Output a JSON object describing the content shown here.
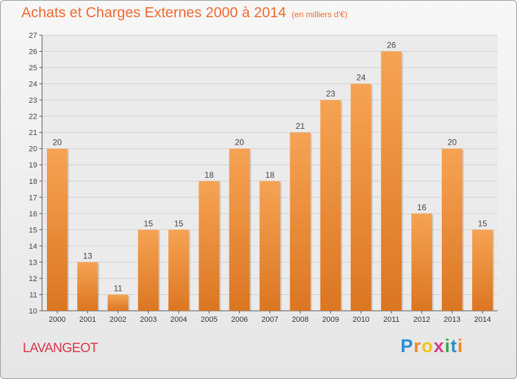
{
  "chart_data": {
    "type": "bar",
    "title": "Achats et Charges Externes 2000 à 2014",
    "subtitle": "(en milliers d'€)",
    "categories": [
      "2000",
      "2001",
      "2002",
      "2003",
      "2004",
      "2005",
      "2006",
      "2007",
      "2008",
      "2009",
      "2010",
      "2011",
      "2012",
      "2013",
      "2014"
    ],
    "values": [
      20,
      13,
      11,
      15,
      15,
      18,
      20,
      18,
      21,
      23,
      24,
      26,
      16,
      20,
      15
    ],
    "ylim": [
      10,
      27
    ],
    "yticks": [
      10,
      11,
      12,
      13,
      14,
      15,
      16,
      17,
      18,
      19,
      20,
      21,
      22,
      23,
      24,
      25,
      26,
      27
    ],
    "xlabel": "",
    "ylabel": "",
    "grid": true,
    "colors": {
      "bar_top": "#f6a354",
      "bar_bottom": "#db7622",
      "grid": "#d2d2d2",
      "axis": "#555555",
      "title": "#ef6a2f"
    }
  },
  "commune": "LAVANGEOT",
  "logo": {
    "letters": [
      "P",
      "r",
      "o",
      "x",
      "i",
      "t",
      "i"
    ],
    "colors": [
      "#2a8fd6",
      "#f08a1c",
      "#f0c419",
      "#d93a8a",
      "#3aa84a",
      "#2a8fd6",
      "#f08a1c"
    ]
  }
}
